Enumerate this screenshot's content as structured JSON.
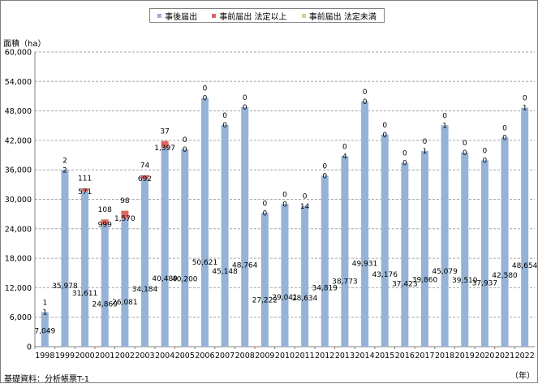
{
  "chart_data": {
    "type": "bar",
    "stacked": true,
    "ylabel": "面積（ha）",
    "xlabel": "（年）",
    "source": "基礎資料：分析帳票T-1",
    "ylim": [
      0,
      60000
    ],
    "yticks": [
      "0",
      "6,000",
      "12,000",
      "18,000",
      "24,000",
      "30,000",
      "36,000",
      "42,000",
      "48,000",
      "54,000",
      "60,000"
    ],
    "grid": true,
    "legend_position": "top",
    "categories": [
      "1998",
      "1999",
      "2000",
      "2001",
      "2002",
      "2003",
      "2004",
      "2005",
      "2006",
      "2007",
      "2008",
      "2009",
      "2010",
      "2011",
      "2012",
      "2013",
      "2014",
      "2015",
      "2016",
      "2017",
      "2018",
      "2019",
      "2020",
      "2021",
      "2022"
    ],
    "series": [
      {
        "name": "事後届出",
        "color": "#95b3d7",
        "values": [
          7049,
          35978,
          31611,
          24869,
          26081,
          34184,
          40489,
          40200,
          50621,
          45148,
          48764,
          27222,
          29041,
          28634,
          34819,
          38773,
          49931,
          43176,
          37423,
          39860,
          45079,
          39510,
          37937,
          42580,
          48654
        ],
        "labels": [
          "7,049",
          "35,978",
          "31,611",
          "24,869",
          "26,081",
          "34,184",
          "40,489",
          "40,200",
          "50,621",
          "45,148",
          "48,764",
          "27,222",
          "29,041",
          "28,634",
          "34,819",
          "38,773",
          "49,931",
          "43,176",
          "37,423",
          "39,860",
          "45,079",
          "39,510",
          "37,937",
          "42,580",
          "48,654"
        ]
      },
      {
        "name": "事前届出 法定以上",
        "color": "#e06666",
        "values": [
          1,
          2,
          571,
          999,
          1570,
          692,
          1397,
          0,
          0,
          0,
          0,
          0,
          0,
          14,
          0,
          4,
          0,
          0,
          0,
          1,
          1,
          0,
          0,
          0,
          1
        ],
        "labels": [
          "1",
          "2",
          "571",
          "999",
          "1,570",
          "692",
          "1,397",
          "0",
          "0",
          "0",
          "0",
          "0",
          "0",
          "14",
          "0",
          "4",
          "0",
          "0",
          "0",
          "1",
          "1",
          "0",
          "0",
          "0",
          "1"
        ]
      },
      {
        "name": "事前届出 法定未満",
        "color": "#c4d79b",
        "values": [
          1,
          2,
          111,
          108,
          98,
          74,
          37,
          0,
          0,
          0,
          0,
          0,
          0,
          0,
          0,
          0,
          0,
          0,
          0,
          0,
          0,
          0,
          0,
          0,
          0
        ],
        "labels": [
          "1",
          "2",
          "111",
          "108",
          "98",
          "74",
          "37",
          "0",
          "0",
          "0",
          "0",
          "0",
          "0",
          "0",
          "0",
          "0",
          "0",
          "0",
          "0",
          "0",
          "0",
          "0",
          "0",
          "0",
          "0"
        ]
      }
    ]
  }
}
